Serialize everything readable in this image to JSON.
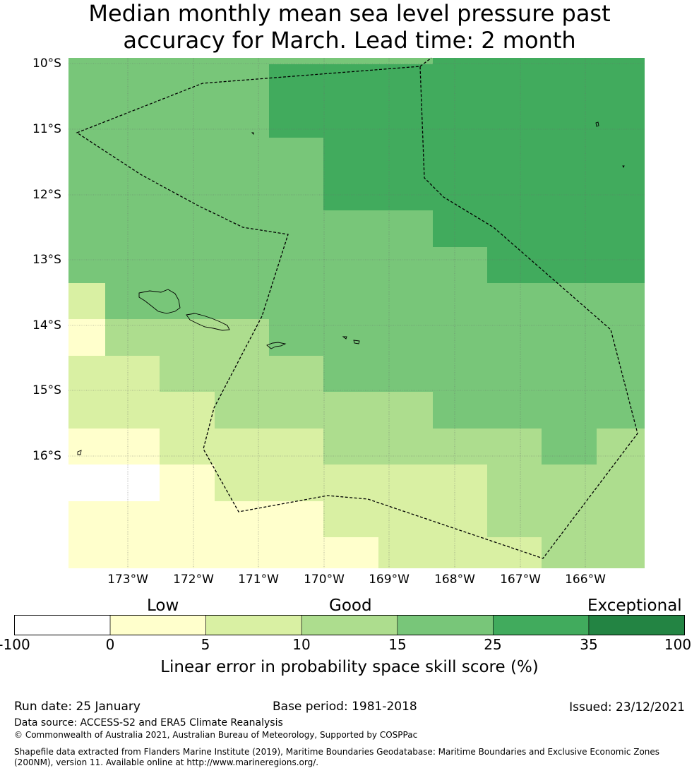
{
  "title": {
    "line1": "Median monthly mean sea level pressure past",
    "line2": "accuracy for March. Lead time: 2 month"
  },
  "map": {
    "lat_labels": [
      "10°S",
      "11°S",
      "12°S",
      "13°S",
      "14°S",
      "15°S",
      "16°S"
    ],
    "lon_labels": [
      "173°W",
      "172°W",
      "171°W",
      "170°W",
      "169°W",
      "168°W",
      "167°W",
      "166°W"
    ],
    "gridlines": true,
    "colors": {
      "nodata": "#ffffff",
      "band_0_5": "#ffffcc",
      "band_5_10": "#d9f0a3",
      "band_10_15": "#addd8e",
      "band_15_25": "#78c679",
      "band_25_35": "#41ab5d",
      "band_35_100": "#238443",
      "boundary": "#000000"
    }
  },
  "colorbar": {
    "categories": [
      "Low",
      "Good",
      "Exceptional"
    ],
    "ticks": [
      "-100",
      "0",
      "5",
      "10",
      "15",
      "25",
      "35",
      "100"
    ],
    "colors": [
      "#ffffff",
      "#ffffcc",
      "#d9f0a3",
      "#addd8e",
      "#78c679",
      "#41ab5d",
      "#238443"
    ],
    "title": "Linear error in probability space skill score (%)"
  },
  "footer": {
    "run_date": "Run date: 25 January",
    "base_period": "Base period: 1981-2018",
    "issued": "Issued: 23/12/2021",
    "data_source": "Data source: ACCESS-S2 and ERA5 Climate Reanalysis",
    "copyright": "© Commonwealth of Australia 2021, Australian Bureau of Meteorology, Supported by COSPPac",
    "shapefile_line1": "Shapefile data extracted from Flanders Marine Institute (2019), Maritime Boundaries Geodatabase: Maritime Boundaries and Exclusive Economic Zones",
    "shapefile_line2": "(200NM), version 11. Available online at http://www.marineregions.org/."
  }
}
